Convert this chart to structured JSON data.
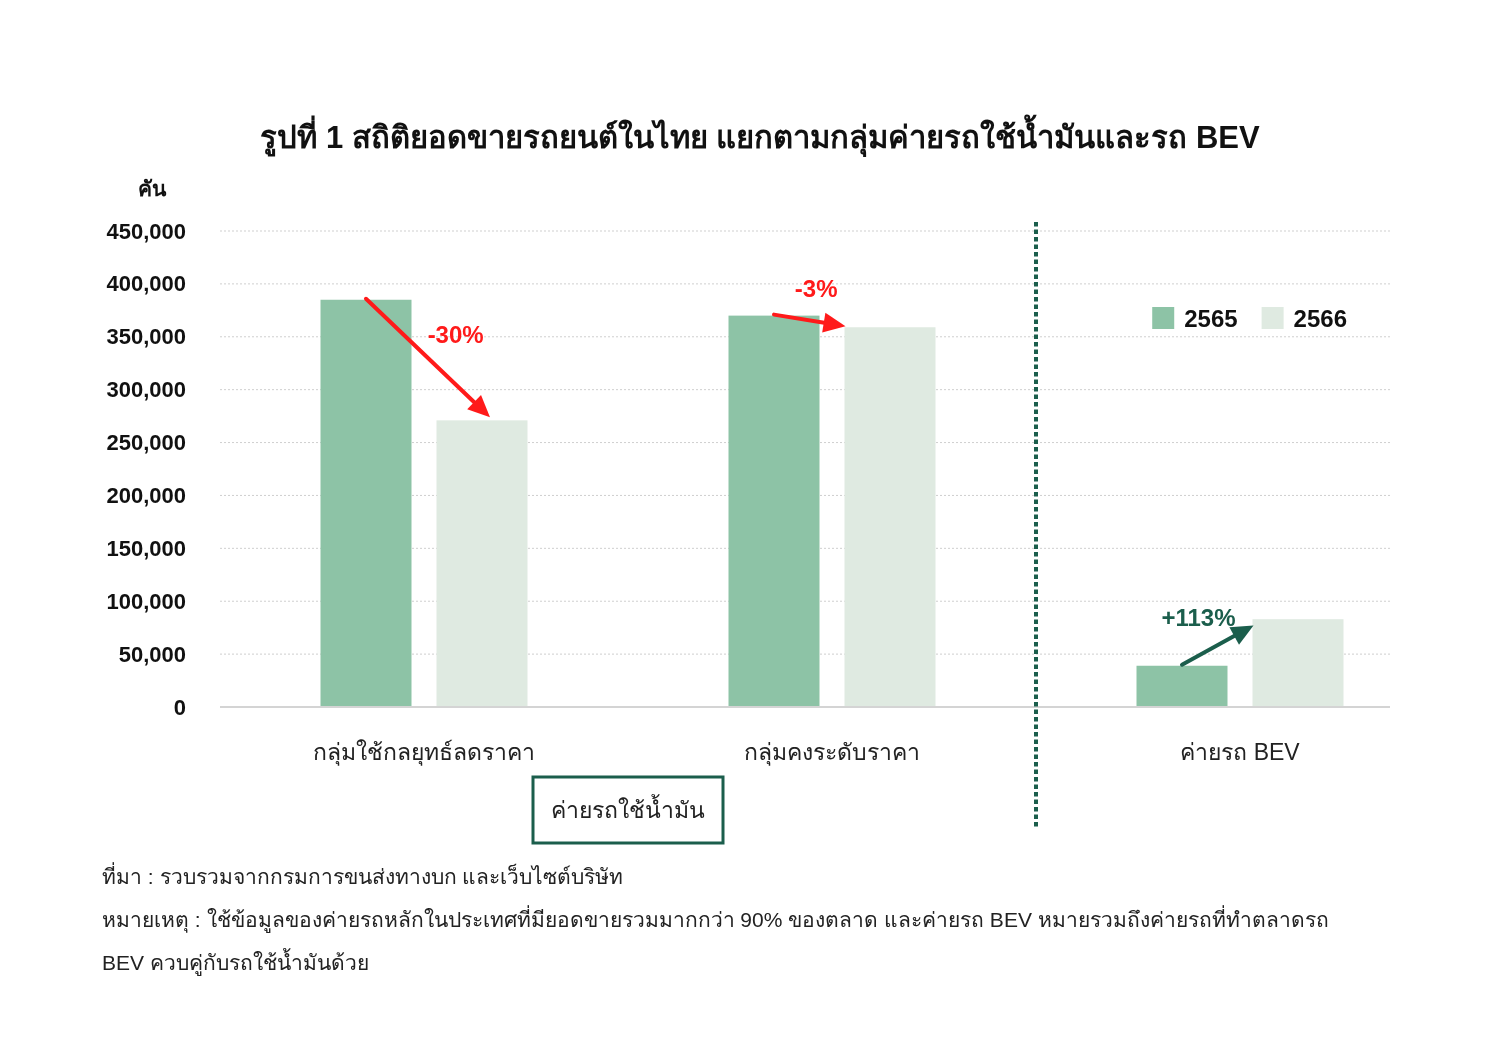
{
  "chart_data": {
    "type": "bar",
    "title": "รูปที่ 1 สถิติยอดขายรถยนต์ในไทย แยกตามกลุ่มค่ายรถใช้น้ำมันและรถ BEV",
    "ylabel": "คัน",
    "categories": [
      "กลุ่มใช้กลยุทธ์ลดราคา",
      "กลุ่มคงระดับราคา",
      "ค่ายรถ BEV"
    ],
    "series": [
      {
        "name": "2565",
        "color": "#8dc3a6",
        "values": [
          385000,
          370000,
          39000
        ]
      },
      {
        "name": "2566",
        "color": "#dfeae1",
        "values": [
          271000,
          359000,
          83000
        ]
      }
    ],
    "ylim": [
      0,
      450000
    ],
    "yticks": [
      0,
      {
        "value": 50000,
        "label": "50,000"
      },
      {
        "value": 100000,
        "label": "100,000"
      },
      {
        "value": 150000,
        "label": "150,000"
      },
      {
        "value": 200000,
        "label": "200,000"
      },
      {
        "value": 250000,
        "label": "250,000"
      },
      {
        "value": 300000,
        "label": "300,000"
      },
      {
        "value": 350000,
        "label": "350,000"
      },
      {
        "value": 400000,
        "label": "400,000"
      },
      {
        "value": 450000,
        "label": "450,000"
      }
    ],
    "grid": "y",
    "legend": "top right",
    "annotations": [
      "-30%",
      "-3%",
      "+113%",
      "ค่ายรถใช้น้ำมัน",
      "ที่มา : รวบรวมจากกรมการขนส่งทางบก และเว็บไซต์บริษัท",
      "หมายเหตุ : ใช้ข้อมูลของค่ายรถหลักในประเทศที่มียอดขายรวมมากกว่า 90% ของตลาด และค่ายรถ BEV หมายรวมถึงค่ายรถที่ทำตลาดรถ BEV ควบคู่กับรถใช้น้ำมันด้วย"
    ]
  }
}
